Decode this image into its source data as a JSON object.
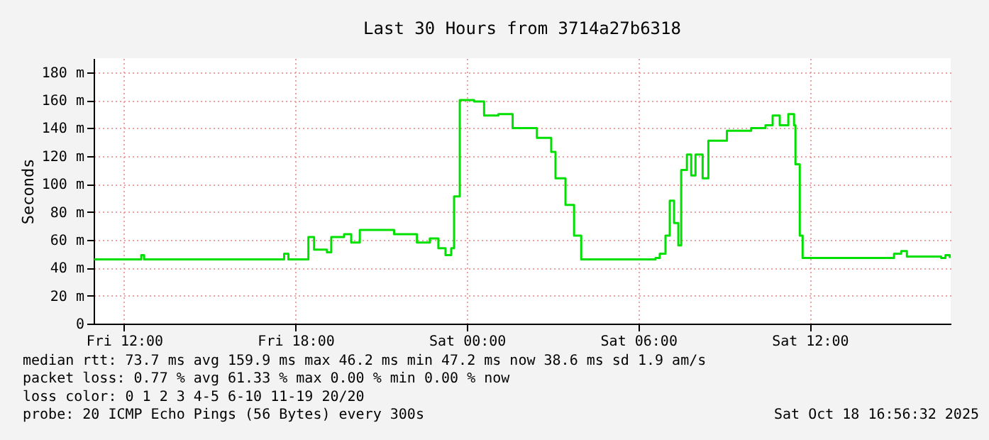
{
  "chart_data": {
    "type": "step",
    "title": "Last 30 Hours from 3714a27b6318",
    "ylabel": "Seconds",
    "x": [
      "2025-10-17T10:57",
      "2025-10-17T12:30",
      "2025-10-17T12:36",
      "2025-10-17T12:42",
      "2025-10-17T17:30",
      "2025-10-17T17:36",
      "2025-10-17T17:45",
      "2025-10-17T18:18",
      "2025-10-17T18:27",
      "2025-10-17T18:39",
      "2025-10-17T19:06",
      "2025-10-17T19:15",
      "2025-10-17T19:42",
      "2025-10-17T19:57",
      "2025-10-17T20:15",
      "2025-10-17T21:15",
      "2025-10-17T21:27",
      "2025-10-17T21:57",
      "2025-10-17T22:15",
      "2025-10-17T22:42",
      "2025-10-17T23:00",
      "2025-10-17T23:15",
      "2025-10-17T23:27",
      "2025-10-17T23:33",
      "2025-10-17T23:45",
      "2025-10-18T00:15",
      "2025-10-18T00:36",
      "2025-10-18T01:06",
      "2025-10-18T01:36",
      "2025-10-18T02:27",
      "2025-10-18T02:57",
      "2025-10-18T03:06",
      "2025-10-18T03:27",
      "2025-10-18T03:45",
      "2025-10-18T04:00",
      "2025-10-18T06:36",
      "2025-10-18T06:45",
      "2025-10-18T06:57",
      "2025-10-18T07:06",
      "2025-10-18T07:15",
      "2025-10-18T07:24",
      "2025-10-18T07:30",
      "2025-10-18T07:42",
      "2025-10-18T07:51",
      "2025-10-18T08:00",
      "2025-10-18T08:15",
      "2025-10-18T08:27",
      "2025-10-18T09:06",
      "2025-10-18T09:57",
      "2025-10-18T10:27",
      "2025-10-18T10:42",
      "2025-10-18T10:57",
      "2025-10-18T11:15",
      "2025-10-18T11:27",
      "2025-10-18T11:30",
      "2025-10-18T11:39",
      "2025-10-18T11:45",
      "2025-10-18T14:51",
      "2025-10-18T14:57",
      "2025-10-18T15:12",
      "2025-10-18T15:24",
      "2025-10-18T16:36",
      "2025-10-18T16:45",
      "2025-10-18T16:54"
    ],
    "series": [
      {
        "color": "#00e000",
        "values": [
          46,
          46,
          49,
          46,
          46,
          50,
          46,
          46,
          62,
          53,
          51,
          62,
          64,
          58,
          67,
          67,
          64,
          64,
          58,
          61,
          54,
          49,
          54,
          91,
          160,
          159,
          149,
          150,
          140,
          133,
          123,
          104,
          85,
          63,
          46,
          47,
          50,
          63,
          88,
          72,
          56,
          110,
          121,
          106,
          121,
          104,
          131,
          138,
          140,
          142,
          149,
          142,
          150,
          142,
          114,
          63,
          47,
          47,
          50,
          52,
          48,
          47,
          49,
          47
        ]
      }
    ],
    "xlim": [
      "2025-10-17T10:56",
      "2025-10-18T16:56"
    ],
    "xticks": [
      {
        "value": "2025-10-17T12:00",
        "label": "Fri 12:00"
      },
      {
        "value": "2025-10-17T18:00",
        "label": "Fri 18:00"
      },
      {
        "value": "2025-10-18T00:00",
        "label": "Sat 00:00"
      },
      {
        "value": "2025-10-18T06:00",
        "label": "Sat 06:00"
      },
      {
        "value": "2025-10-18T12:00",
        "label": "Sat 12:00"
      }
    ],
    "ylim": [
      0,
      190
    ],
    "yticks": [
      {
        "value": 0,
        "label": "0"
      },
      {
        "value": 20,
        "label": "20 m"
      },
      {
        "value": 40,
        "label": "40 m"
      },
      {
        "value": 60,
        "label": "60 m"
      },
      {
        "value": 80,
        "label": "80 m"
      },
      {
        "value": 100,
        "label": "100 m"
      },
      {
        "value": 120,
        "label": "120 m"
      },
      {
        "value": 140,
        "label": "140 m"
      },
      {
        "value": 160,
        "label": "160 m"
      },
      {
        "value": 180,
        "label": "180 m"
      }
    ],
    "grid": true,
    "annotations": [
      "median rtt: 73.7 ms avg 159.9 ms max 46.2 ms min 47.2 ms now 38.6 ms sd 1.9 am/s",
      "packet loss: 0.77 % avg 61.33 % max 0.00 % min 0.00 % now",
      "loss color: 0 1 2 3 4-5 6-10 11-19 20/20",
      "probe: 20 ICMP Echo Pings (56 Bytes) every 300s",
      "Sat Oct 18 16:56:32 2025"
    ]
  }
}
